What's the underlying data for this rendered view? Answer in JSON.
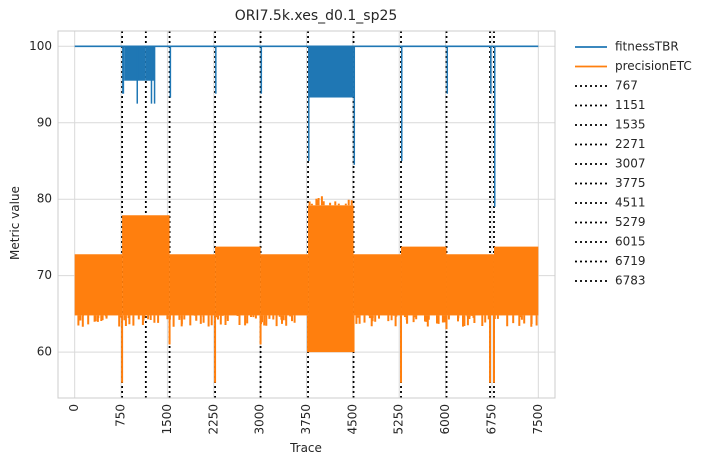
{
  "chart_data": {
    "type": "line",
    "title": "ORI7.5k.xes_d0.1_sp25",
    "xlabel": "Trace",
    "ylabel": "Metric value",
    "xlim": [
      -270,
      7770
    ],
    "ylim": [
      54,
      102
    ],
    "xticks": [
      0,
      750,
      1500,
      2250,
      3000,
      3750,
      4500,
      5250,
      6000,
      6750,
      7500
    ],
    "yticks": [
      60,
      70,
      80,
      90,
      100
    ],
    "grid": true,
    "legend_position": "outside-right",
    "series": [
      {
        "name": "fitnessTBR",
        "color": "#1f77b4",
        "baseline": 100,
        "dips": [
          {
            "x": [
              767,
              800
            ],
            "min": 93.8
          },
          {
            "x": [
              800,
              1151
            ],
            "min": 95.5,
            "band": true
          },
          {
            "x": [
              1000,
              1010
            ],
            "min": 92.5
          },
          {
            "x": [
              1151,
              1300
            ],
            "min": 95.5,
            "band": true
          },
          {
            "x": [
              1230,
              1250
            ],
            "min": 92.5
          },
          {
            "x": [
              1280,
              1300
            ],
            "min": 92.5
          },
          {
            "x": [
              1535,
              1560
            ],
            "min": 93.3
          },
          {
            "x": [
              2271,
              2290
            ],
            "min": 93.8
          },
          {
            "x": [
              3007,
              3020
            ],
            "min": 93.8
          },
          {
            "x": [
              3775,
              3790
            ],
            "min": 85.0
          },
          {
            "x": [
              3790,
              4511
            ],
            "min": 93.3,
            "band": true
          },
          {
            "x": [
              4511,
              4525
            ],
            "min": 84.5
          },
          {
            "x": [
              5279,
              5295
            ],
            "min": 85.0
          },
          {
            "x": [
              6015,
              6030
            ],
            "min": 93.8
          },
          {
            "x": [
              6719,
              6730
            ],
            "min": 93.8
          },
          {
            "x": [
              6783,
              6800
            ],
            "min": 79.0
          }
        ]
      },
      {
        "name": "precisionETC",
        "color": "#ff7f0e",
        "segments": [
          {
            "x": [
              0,
              767
            ],
            "high": 72.8,
            "low": 64.8,
            "deep": 63.3
          },
          {
            "x": [
              767,
              1535
            ],
            "high": 77.9,
            "low": 64.8,
            "deep": 63.3
          },
          {
            "x": [
              1535,
              2271
            ],
            "high": 72.8,
            "low": 64.8,
            "deep": 63.3
          },
          {
            "x": [
              2271,
              3007
            ],
            "high": 73.8,
            "low": 64.8,
            "deep": 63.3
          },
          {
            "x": [
              3007,
              3775
            ],
            "high": 72.8,
            "low": 64.8,
            "deep": 63.3
          },
          {
            "x": [
              3775,
              4511
            ],
            "high": 79.2,
            "low": 60.0,
            "deep": 60.0,
            "peak": 80.5
          },
          {
            "x": [
              4511,
              5279
            ],
            "high": 72.8,
            "low": 64.8,
            "deep": 63.3
          },
          {
            "x": [
              5279,
              6015
            ],
            "high": 73.8,
            "low": 64.8,
            "deep": 63.3
          },
          {
            "x": [
              6015,
              6783
            ],
            "high": 72.8,
            "low": 64.8,
            "deep": 63.3
          },
          {
            "x": [
              6783,
              7500
            ],
            "high": 73.8,
            "low": 64.8,
            "deep": 63.3
          }
        ],
        "spikes": [
          {
            "x": 767,
            "min": 56.0
          },
          {
            "x": 1535,
            "min": 61.0
          },
          {
            "x": 2271,
            "min": 56.0
          },
          {
            "x": 3007,
            "min": 61.0
          },
          {
            "x": 3775,
            "min": 60.0
          },
          {
            "x": 4511,
            "min": 60.0
          },
          {
            "x": 5279,
            "min": 56.0
          },
          {
            "x": 6015,
            "min": 63.0
          },
          {
            "x": 6719,
            "min": 56.0
          },
          {
            "x": 6783,
            "min": 56.0
          }
        ]
      }
    ],
    "vlines": [
      767,
      1151,
      1535,
      2271,
      3007,
      3775,
      4511,
      5279,
      6015,
      6719,
      6783
    ],
    "vline_labels": [
      "767",
      "1151",
      "1535",
      "2271",
      "3007",
      "3775",
      "4511",
      "5279",
      "6015",
      "6719",
      "6783"
    ],
    "legend_entries": [
      "fitnessTBR",
      "precisionETC",
      "767",
      "1151",
      "1535",
      "2271",
      "3007",
      "3775",
      "4511",
      "5279",
      "6015",
      "6719",
      "6783"
    ]
  }
}
